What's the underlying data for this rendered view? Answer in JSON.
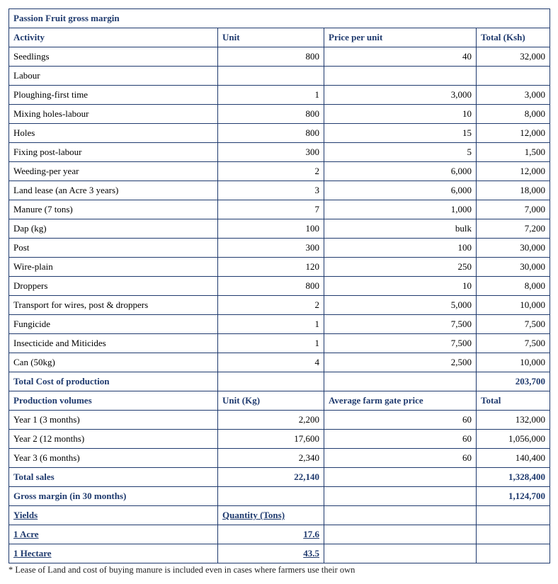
{
  "title": "Passion Fruit gross margin",
  "headers1": {
    "activity": "Activity",
    "unit": "Unit",
    "price": "Price per unit",
    "total": "Total (Ksh)"
  },
  "rows": [
    {
      "a": "Seedlings",
      "u": "800",
      "p": "40",
      "t": "32,000"
    },
    {
      "a": "Labour",
      "u": "",
      "p": "",
      "t": ""
    },
    {
      "a": "Ploughing-first time",
      "u": "1",
      "p": "3,000",
      "t": "3,000"
    },
    {
      "a": "Mixing holes-labour",
      "u": "800",
      "p": "10",
      "t": "8,000"
    },
    {
      "a": "Holes",
      "u": "800",
      "p": "15",
      "t": "12,000"
    },
    {
      "a": "Fixing post-labour",
      "u": "300",
      "p": "5",
      "t": "1,500"
    },
    {
      "a": "Weeding-per year",
      "u": "2",
      "p": "6,000",
      "t": "12,000"
    },
    {
      "a": "Land lease (an Acre 3 years)",
      "u": "3",
      "p": "6,000",
      "t": "18,000"
    },
    {
      "a": "Manure (7 tons)",
      "u": "7",
      "p": "1,000",
      "t": "7,000"
    },
    {
      "a": "Dap (kg)",
      "u": "100",
      "p": "bulk",
      "t": "7,200"
    },
    {
      "a": "Post",
      "u": "300",
      "p": "100",
      "t": "30,000"
    },
    {
      "a": "Wire-plain",
      "u": "120",
      "p": "250",
      "t": "30,000"
    },
    {
      "a": "Droppers",
      "u": "800",
      "p": "10",
      "t": "8,000"
    },
    {
      "a": "Transport for wires, post & droppers",
      "u": "2",
      "p": "5,000",
      "t": "10,000"
    },
    {
      "a": "Fungicide",
      "u": "1",
      "p": "7,500",
      "t": "7,500"
    },
    {
      "a": "Insecticide and Miticides",
      "u": "1",
      "p": "7,500",
      "t": "7,500"
    },
    {
      "a": "Can (50kg)",
      "u": "4",
      "p": "2,500",
      "t": "10,000"
    }
  ],
  "totalCost": {
    "label": "Total Cost of production",
    "value": "203,700"
  },
  "headers2": {
    "vol": "Production volumes",
    "unit": "Unit (Kg)",
    "price": "Average farm gate price",
    "total": "Total"
  },
  "prod": [
    {
      "a": "Year 1 (3 months)",
      "u": "2,200",
      "p": "60",
      "t": "132,000"
    },
    {
      "a": "Year 2 (12 months)",
      "u": "17,600",
      "p": "60",
      "t": "1,056,000"
    },
    {
      "a": "Year 3 (6 months)",
      "u": "2,340",
      "p": "60",
      "t": "140,400"
    }
  ],
  "totalSales": {
    "label": "Total sales",
    "unit": "22,140",
    "value": "1,328,400"
  },
  "grossMargin": {
    "label": "Gross margin (in 30 months)",
    "value": "1,124,700"
  },
  "yields": {
    "label": "Yields",
    "qtyLabel": "Quantity (Tons)",
    "rows": [
      {
        "a": "1 Acre",
        "q": "17.6"
      },
      {
        "a": "1 Hectare",
        "q": "43.5"
      }
    ]
  },
  "footnote": "* Lease of Land and cost of buying manure is included even in cases where farmers use their own",
  "colors": {
    "accent": "#1f3a6e",
    "border": "#1f3a6e",
    "background": "#ffffff"
  },
  "type": "table"
}
